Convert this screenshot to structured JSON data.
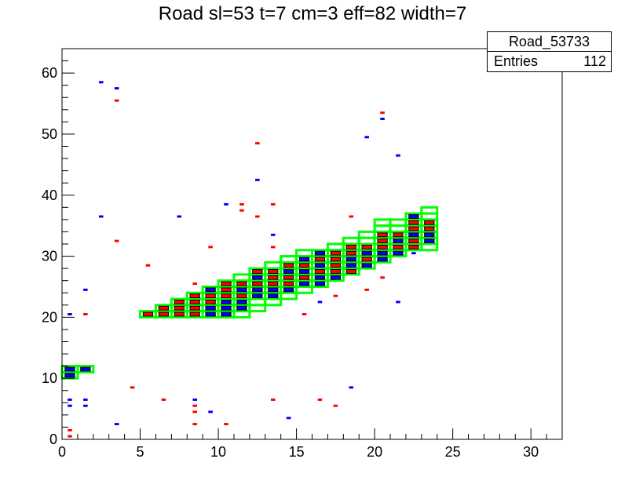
{
  "title": "Road sl=53 t=7 cm=3 eff=82 width=7",
  "stats": {
    "name": "Road_53733",
    "entries_label": "Entries",
    "entries_value": "112"
  },
  "colors": {
    "road": "#00ff00",
    "hit_red": "#ff0000",
    "hit_blue": "#0000ff",
    "hit_box": "#000000"
  },
  "chart_data": {
    "type": "heatmap",
    "xlim": [
      0,
      32
    ],
    "ylim": [
      0,
      64
    ],
    "xticks": [
      0,
      5,
      10,
      15,
      20,
      25,
      30
    ],
    "yticks": [
      0,
      10,
      20,
      30,
      40,
      50,
      60
    ],
    "xlabel": "",
    "ylabel": "",
    "grid": false,
    "road_cells": [
      [
        0,
        10
      ],
      [
        0,
        11
      ],
      [
        1,
        11
      ],
      [
        5,
        20
      ],
      [
        6,
        20
      ],
      [
        6,
        21
      ],
      [
        7,
        20
      ],
      [
        7,
        21
      ],
      [
        7,
        22
      ],
      [
        8,
        20
      ],
      [
        8,
        21
      ],
      [
        8,
        22
      ],
      [
        8,
        23
      ],
      [
        9,
        20
      ],
      [
        9,
        21
      ],
      [
        9,
        22
      ],
      [
        9,
        23
      ],
      [
        9,
        24
      ],
      [
        10,
        20
      ],
      [
        10,
        21
      ],
      [
        10,
        22
      ],
      [
        10,
        23
      ],
      [
        10,
        24
      ],
      [
        10,
        25
      ],
      [
        11,
        20
      ],
      [
        11,
        21
      ],
      [
        11,
        22
      ],
      [
        11,
        23
      ],
      [
        11,
        24
      ],
      [
        11,
        25
      ],
      [
        11,
        26
      ],
      [
        12,
        21
      ],
      [
        12,
        22
      ],
      [
        12,
        23
      ],
      [
        12,
        24
      ],
      [
        12,
        25
      ],
      [
        12,
        26
      ],
      [
        12,
        27
      ],
      [
        13,
        22
      ],
      [
        13,
        23
      ],
      [
        13,
        24
      ],
      [
        13,
        25
      ],
      [
        13,
        26
      ],
      [
        13,
        27
      ],
      [
        13,
        28
      ],
      [
        14,
        23
      ],
      [
        14,
        24
      ],
      [
        14,
        25
      ],
      [
        14,
        26
      ],
      [
        14,
        27
      ],
      [
        14,
        28
      ],
      [
        14,
        29
      ],
      [
        15,
        24
      ],
      [
        15,
        25
      ],
      [
        15,
        26
      ],
      [
        15,
        27
      ],
      [
        15,
        28
      ],
      [
        15,
        29
      ],
      [
        15,
        30
      ],
      [
        16,
        25
      ],
      [
        16,
        26
      ],
      [
        16,
        27
      ],
      [
        16,
        28
      ],
      [
        16,
        29
      ],
      [
        16,
        30
      ],
      [
        17,
        26
      ],
      [
        17,
        27
      ],
      [
        17,
        28
      ],
      [
        17,
        29
      ],
      [
        17,
        30
      ],
      [
        17,
        31
      ],
      [
        18,
        27
      ],
      [
        18,
        28
      ],
      [
        18,
        29
      ],
      [
        18,
        30
      ],
      [
        18,
        31
      ],
      [
        18,
        32
      ],
      [
        19,
        28
      ],
      [
        19,
        29
      ],
      [
        19,
        30
      ],
      [
        19,
        31
      ],
      [
        19,
        32
      ],
      [
        19,
        33
      ],
      [
        20,
        29
      ],
      [
        20,
        30
      ],
      [
        20,
        31
      ],
      [
        20,
        32
      ],
      [
        20,
        33
      ],
      [
        20,
        34
      ],
      [
        20,
        35
      ],
      [
        21,
        30
      ],
      [
        21,
        31
      ],
      [
        21,
        32
      ],
      [
        21,
        33
      ],
      [
        21,
        34
      ],
      [
        21,
        35
      ],
      [
        22,
        31
      ],
      [
        22,
        32
      ],
      [
        22,
        33
      ],
      [
        22,
        34
      ],
      [
        22,
        35
      ],
      [
        22,
        36
      ],
      [
        23,
        31
      ],
      [
        23,
        32
      ],
      [
        23,
        33
      ],
      [
        23,
        34
      ],
      [
        23,
        35
      ],
      [
        23,
        36
      ],
      [
        23,
        37
      ]
    ],
    "hits": [
      [
        0,
        0,
        "r"
      ],
      [
        0,
        1,
        "r"
      ],
      [
        0,
        5,
        "b"
      ],
      [
        0,
        6,
        "b"
      ],
      [
        0,
        10,
        "b"
      ],
      [
        0,
        11,
        "b"
      ],
      [
        0,
        20,
        "b"
      ],
      [
        1,
        5,
        "b"
      ],
      [
        1,
        6,
        "b"
      ],
      [
        1,
        11,
        "b"
      ],
      [
        1,
        20,
        "r"
      ],
      [
        1,
        24,
        "b"
      ],
      [
        2,
        36,
        "b"
      ],
      [
        2,
        58,
        "b"
      ],
      [
        3,
        2,
        "b"
      ],
      [
        3,
        32,
        "r"
      ],
      [
        3,
        55,
        "r"
      ],
      [
        3,
        57,
        "b"
      ],
      [
        4,
        8,
        "r"
      ],
      [
        5,
        20,
        "r"
      ],
      [
        5,
        28,
        "r"
      ],
      [
        6,
        6,
        "r"
      ],
      [
        6,
        20,
        "r"
      ],
      [
        6,
        21,
        "r"
      ],
      [
        7,
        20,
        "r"
      ],
      [
        7,
        21,
        "r"
      ],
      [
        7,
        22,
        "r"
      ],
      [
        7,
        36,
        "b"
      ],
      [
        8,
        2,
        "r"
      ],
      [
        8,
        4,
        "r"
      ],
      [
        8,
        5,
        "r"
      ],
      [
        8,
        6,
        "b"
      ],
      [
        8,
        20,
        "r"
      ],
      [
        8,
        21,
        "r"
      ],
      [
        8,
        22,
        "r"
      ],
      [
        8,
        23,
        "r"
      ],
      [
        8,
        25,
        "r"
      ],
      [
        9,
        4,
        "b"
      ],
      [
        9,
        20,
        "b"
      ],
      [
        9,
        21,
        "b"
      ],
      [
        9,
        22,
        "r"
      ],
      [
        9,
        23,
        "r"
      ],
      [
        9,
        24,
        "b"
      ],
      [
        9,
        31,
        "r"
      ],
      [
        10,
        2,
        "r"
      ],
      [
        10,
        20,
        "b"
      ],
      [
        10,
        21,
        "b"
      ],
      [
        10,
        22,
        "b"
      ],
      [
        10,
        23,
        "r"
      ],
      [
        10,
        24,
        "r"
      ],
      [
        10,
        25,
        "r"
      ],
      [
        10,
        38,
        "b"
      ],
      [
        11,
        21,
        "b"
      ],
      [
        11,
        22,
        "b"
      ],
      [
        11,
        23,
        "r"
      ],
      [
        11,
        24,
        "b"
      ],
      [
        11,
        25,
        "r"
      ],
      [
        11,
        37,
        "r"
      ],
      [
        11,
        38,
        "r"
      ],
      [
        12,
        23,
        "b"
      ],
      [
        12,
        24,
        "b"
      ],
      [
        12,
        25,
        "r"
      ],
      [
        12,
        26,
        "b"
      ],
      [
        12,
        27,
        "r"
      ],
      [
        12,
        36,
        "r"
      ],
      [
        12,
        42,
        "b"
      ],
      [
        12,
        48,
        "r"
      ],
      [
        13,
        6,
        "r"
      ],
      [
        13,
        23,
        "b"
      ],
      [
        13,
        24,
        "b"
      ],
      [
        13,
        25,
        "r"
      ],
      [
        13,
        26,
        "r"
      ],
      [
        13,
        27,
        "r"
      ],
      [
        13,
        31,
        "r"
      ],
      [
        13,
        33,
        "b"
      ],
      [
        13,
        38,
        "r"
      ],
      [
        14,
        3,
        "b"
      ],
      [
        14,
        24,
        "b"
      ],
      [
        14,
        25,
        "r"
      ],
      [
        14,
        26,
        "r"
      ],
      [
        14,
        27,
        "b"
      ],
      [
        14,
        28,
        "r"
      ],
      [
        15,
        20,
        "r"
      ],
      [
        15,
        25,
        "b"
      ],
      [
        15,
        26,
        "r"
      ],
      [
        15,
        27,
        "b"
      ],
      [
        15,
        28,
        "r"
      ],
      [
        15,
        29,
        "b"
      ],
      [
        16,
        6,
        "r"
      ],
      [
        16,
        22,
        "b"
      ],
      [
        16,
        25,
        "b"
      ],
      [
        16,
        26,
        "b"
      ],
      [
        16,
        27,
        "r"
      ],
      [
        16,
        28,
        "b"
      ],
      [
        16,
        29,
        "r"
      ],
      [
        16,
        30,
        "b"
      ],
      [
        17,
        5,
        "r"
      ],
      [
        17,
        23,
        "r"
      ],
      [
        17,
        26,
        "b"
      ],
      [
        17,
        27,
        "r"
      ],
      [
        17,
        28,
        "r"
      ],
      [
        17,
        29,
        "r"
      ],
      [
        17,
        30,
        "r"
      ],
      [
        18,
        8,
        "b"
      ],
      [
        18,
        27,
        "r"
      ],
      [
        18,
        28,
        "b"
      ],
      [
        18,
        29,
        "b"
      ],
      [
        18,
        30,
        "r"
      ],
      [
        18,
        31,
        "r"
      ],
      [
        18,
        36,
        "r"
      ],
      [
        19,
        24,
        "r"
      ],
      [
        19,
        28,
        "b"
      ],
      [
        19,
        29,
        "r"
      ],
      [
        19,
        30,
        "b"
      ],
      [
        19,
        31,
        "r"
      ],
      [
        19,
        49,
        "b"
      ],
      [
        20,
        26,
        "r"
      ],
      [
        20,
        29,
        "b"
      ],
      [
        20,
        30,
        "b"
      ],
      [
        20,
        31,
        "r"
      ],
      [
        20,
        32,
        "r"
      ],
      [
        20,
        33,
        "r"
      ],
      [
        20,
        52,
        "b"
      ],
      [
        20,
        53,
        "r"
      ],
      [
        21,
        22,
        "b"
      ],
      [
        21,
        30,
        "b"
      ],
      [
        21,
        31,
        "r"
      ],
      [
        21,
        32,
        "b"
      ],
      [
        21,
        33,
        "r"
      ],
      [
        21,
        46,
        "b"
      ],
      [
        22,
        30,
        "b"
      ],
      [
        22,
        31,
        "r"
      ],
      [
        22,
        32,
        "r"
      ],
      [
        22,
        33,
        "b"
      ],
      [
        22,
        34,
        "r"
      ],
      [
        22,
        35,
        "r"
      ],
      [
        22,
        36,
        "b"
      ],
      [
        23,
        32,
        "b"
      ],
      [
        23,
        33,
        "b"
      ],
      [
        23,
        34,
        "r"
      ],
      [
        23,
        35,
        "r"
      ]
    ]
  }
}
